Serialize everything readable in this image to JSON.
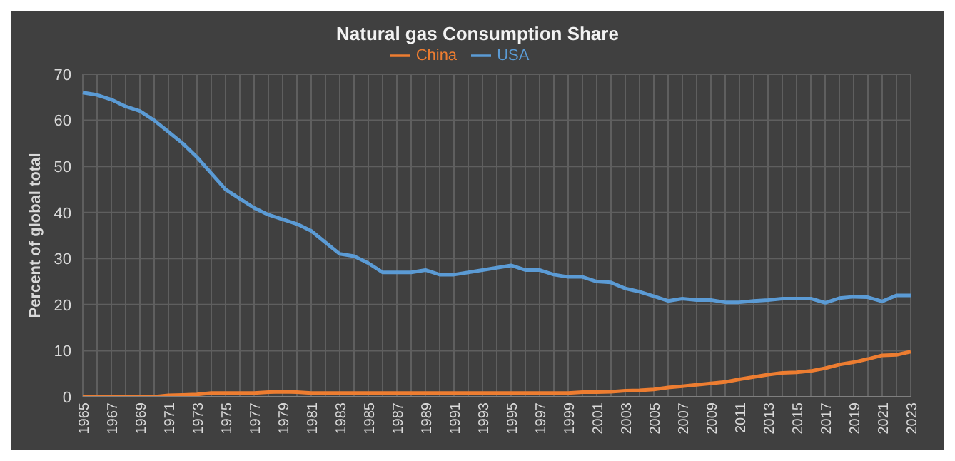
{
  "chart_data": {
    "type": "line",
    "title": "Natural gas Consumption Share",
    "ylabel": "Percent of global total",
    "categories": [
      "1965",
      null,
      "1967",
      null,
      "1969",
      null,
      "1971",
      null,
      "1973",
      null,
      "1975",
      null,
      "1977",
      null,
      "1979",
      null,
      "1981",
      null,
      "1983",
      null,
      "1985",
      null,
      "1987",
      null,
      "1989",
      null,
      "1991",
      null,
      "1993",
      null,
      "1995",
      null,
      "1997",
      null,
      "1999",
      null,
      "2001",
      null,
      "2003",
      null,
      "2005",
      null,
      "2007",
      null,
      "2009",
      null,
      "2011",
      null,
      "2013",
      null,
      "2015",
      null,
      "2017",
      null,
      "2019",
      null,
      "2021",
      null,
      "2023"
    ],
    "series": [
      {
        "name": "USA",
        "color": "#5b9bd5",
        "values": [
          66,
          65.5,
          64.5,
          63,
          62,
          60,
          57.5,
          55,
          52,
          48.5,
          45,
          43,
          41,
          39.5,
          38.5,
          37.5,
          36,
          33.5,
          31,
          30.5,
          29,
          27,
          27,
          27,
          27.5,
          26.5,
          26.5,
          27,
          27.5,
          28,
          28.5,
          27.5,
          27.5,
          26.5,
          26,
          26,
          25,
          24.8,
          23.5,
          22.8,
          21.8,
          20.8,
          21.3,
          21,
          21,
          20.5,
          20.5,
          20.8,
          21,
          21.3,
          21.3,
          21.3,
          20.4,
          21.4,
          21.7,
          21.6,
          20.7,
          22,
          22
        ]
      },
      {
        "name": "China",
        "color": "#ed7d31",
        "values": [
          0,
          0,
          0,
          0,
          0,
          0,
          0.3,
          0.4,
          0.5,
          0.8,
          0.8,
          0.8,
          0.8,
          1,
          1.1,
          1,
          0.8,
          0.8,
          0.8,
          0.8,
          0.8,
          0.8,
          0.8,
          0.8,
          0.8,
          0.8,
          0.8,
          0.8,
          0.8,
          0.8,
          0.8,
          0.8,
          0.8,
          0.8,
          0.8,
          1,
          1,
          1.1,
          1.3,
          1.4,
          1.6,
          2,
          2.3,
          2.6,
          2.9,
          3.2,
          3.8,
          4.3,
          4.8,
          5.2,
          5.3,
          5.6,
          6.2,
          7,
          7.5,
          8.2,
          9,
          9.1,
          9.8
        ]
      }
    ],
    "ylim": [
      0,
      70
    ],
    "yticks": [
      0,
      10,
      20,
      30,
      40,
      50,
      60,
      70
    ],
    "grid": true,
    "legend": "top",
    "marker": "none",
    "line_style": "solid"
  }
}
